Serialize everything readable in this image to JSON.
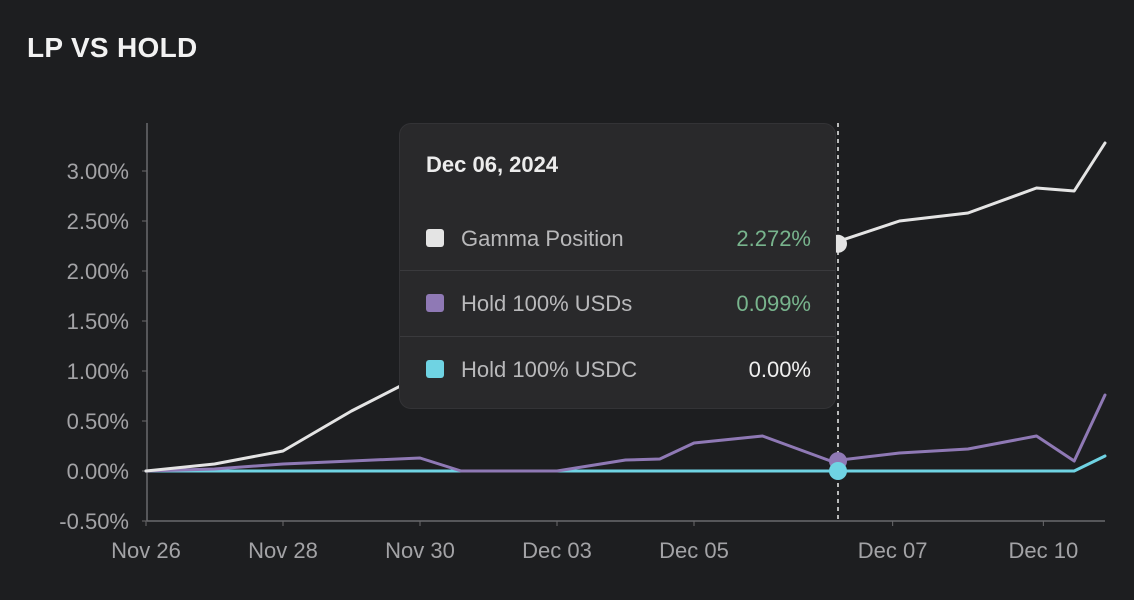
{
  "header": {
    "title": "LP VS HOLD"
  },
  "colors": {
    "background": "#1d1e20",
    "gamma": "#e4e4e4",
    "usds": "#8f79b5",
    "usdc": "#6fd3e3",
    "positive": "#78b48d",
    "neutral": "#f0f0f0",
    "axis_text": "#a3a3a6",
    "axis_line": "#6a6a6d"
  },
  "tooltip": {
    "date": "Dec 06, 2024",
    "rows": [
      {
        "label": "Gamma Position",
        "value": "2.272%",
        "color_key": "gamma",
        "value_color_key": "positive"
      },
      {
        "label": "Hold 100% USDs",
        "value": "0.099%",
        "color_key": "usds",
        "value_color_key": "positive"
      },
      {
        "label": "Hold 100% USDC",
        "value": "0.00%",
        "color_key": "usdc",
        "value_color_key": "neutral"
      }
    ]
  },
  "chart_data": {
    "type": "line",
    "title": "LP VS HOLD",
    "xlabel": "",
    "ylabel": "",
    "x_ticks": [
      "Nov 26",
      "Nov 28",
      "Nov 30",
      "Dec 03",
      "Dec 05",
      "Dec 07",
      "Dec 10"
    ],
    "y_ticks": [
      "-0.50%",
      "0.00%",
      "0.50%",
      "1.00%",
      "1.50%",
      "2.00%",
      "2.50%",
      "3.00%"
    ],
    "ylim": [
      -0.57,
      3.5
    ],
    "xlim": [
      "2024-11-26",
      "2024-12-10"
    ],
    "grid": false,
    "crosshair_date": "2024-12-06",
    "series": [
      {
        "name": "Gamma Position",
        "color_key": "gamma",
        "points": [
          [
            "2024-11-26",
            0.0
          ],
          [
            "2024-11-27",
            0.07
          ],
          [
            "2024-11-28",
            0.2
          ],
          [
            "2024-11-29",
            0.6
          ],
          [
            "2024-11-30",
            0.95
          ],
          [
            "2024-12-01",
            1.3
          ],
          [
            "2024-12-02",
            1.55
          ],
          [
            "2024-12-03",
            1.75
          ],
          [
            "2024-12-04",
            1.95
          ],
          [
            "2024-12-05",
            2.12
          ],
          [
            "2024-12-06",
            2.272
          ],
          [
            "2024-12-07",
            2.5
          ],
          [
            "2024-12-08",
            2.58
          ],
          [
            "2024-12-09",
            2.83
          ],
          [
            "2024-12-09.55",
            2.8
          ],
          [
            "2024-12-10",
            3.28
          ]
        ]
      },
      {
        "name": "Hold 100% USDs",
        "color_key": "usds",
        "points": [
          [
            "2024-11-26",
            0.0
          ],
          [
            "2024-11-27",
            0.02
          ],
          [
            "2024-11-28",
            0.07
          ],
          [
            "2024-11-29",
            0.1
          ],
          [
            "2024-11-30",
            0.13
          ],
          [
            "2024-11-30.6",
            0.0
          ],
          [
            "2024-12-01",
            0.0
          ],
          [
            "2024-12-02",
            0.0
          ],
          [
            "2024-12-03",
            0.11
          ],
          [
            "2024-12-03.5",
            0.12
          ],
          [
            "2024-12-04",
            0.28
          ],
          [
            "2024-12-05",
            0.35
          ],
          [
            "2024-12-06",
            0.099
          ],
          [
            "2024-12-07",
            0.18
          ],
          [
            "2024-12-08",
            0.22
          ],
          [
            "2024-12-09",
            0.35
          ],
          [
            "2024-12-09.55",
            0.1
          ],
          [
            "2024-12-10",
            0.76
          ]
        ]
      },
      {
        "name": "Hold 100% USDC",
        "color_key": "usdc",
        "points": [
          [
            "2024-11-26",
            0.0
          ],
          [
            "2024-11-28",
            0.0
          ],
          [
            "2024-11-30",
            0.0
          ],
          [
            "2024-12-03",
            0.0
          ],
          [
            "2024-12-05",
            0.0
          ],
          [
            "2024-12-06",
            0.0
          ],
          [
            "2024-12-07",
            0.0
          ],
          [
            "2024-12-09",
            0.0
          ],
          [
            "2024-12-09.55",
            0.0
          ],
          [
            "2024-12-10",
            0.15
          ]
        ]
      }
    ]
  }
}
